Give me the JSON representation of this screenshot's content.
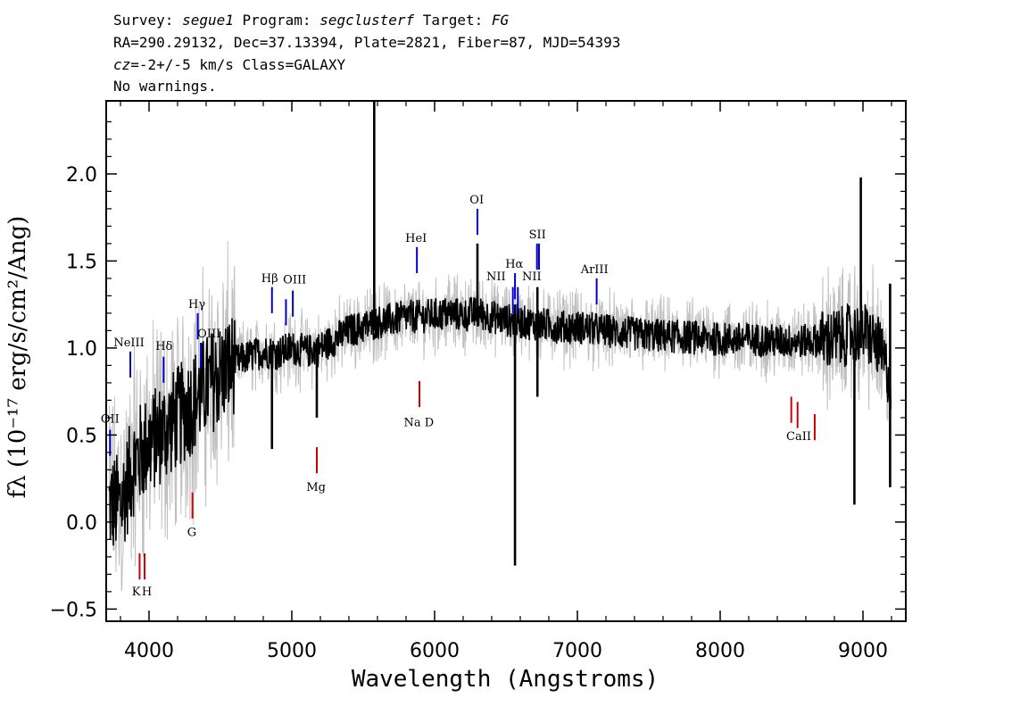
{
  "header": {
    "line1": {
      "survey_label": "Survey: ",
      "survey": "segue1",
      "program_label": " Program: ",
      "program": "segclusterf",
      "target_label": " Target: ",
      "target": "FG"
    },
    "line2": "RA=290.29132, Dec=37.13394, Plate=2821, Fiber=87, MJD=54393",
    "line3": {
      "cz": "cz",
      "rest": "=-2+/-5 km/s Class=GALAXY"
    },
    "line4": "No warnings."
  },
  "colors": {
    "spectrum": "#000000",
    "noise": "#c0c0c0",
    "emission": "#0000cc",
    "absorption": "#cc0000",
    "frame": "#000000"
  },
  "chart_data": {
    "type": "line",
    "xlabel": "Wavelength (Angstroms)",
    "ylabel": "fλ (10⁻¹⁷ erg/s/cm²/Ang)",
    "xlim": [
      3700,
      9300
    ],
    "ylim": [
      -0.57,
      2.42
    ],
    "xticks": [
      4000,
      5000,
      6000,
      7000,
      8000,
      9000
    ],
    "xtick_labels": [
      "4000",
      "5000",
      "6000",
      "7000",
      "8000",
      "9000"
    ],
    "yticks": [
      -0.5,
      0.0,
      0.5,
      1.0,
      1.5,
      2.0
    ],
    "ytick_labels": [
      "-0.5",
      "0.0",
      "0.5",
      "1.0",
      "1.5",
      "2.0"
    ],
    "series": [
      {
        "role": "spectrum",
        "x": [
          3800,
          3900,
          4000,
          4100,
          4200,
          4300,
          4400,
          4500,
          4600,
          4700,
          4800,
          4900,
          5000,
          5100,
          5200,
          5300,
          5400,
          5500,
          5600,
          5700,
          5800,
          5900,
          6000,
          6100,
          6200,
          6300,
          6400,
          6500,
          6600,
          6700,
          6800,
          6900,
          7000,
          7200,
          7400,
          7600,
          7800,
          8000,
          8200,
          8400,
          8600,
          8800,
          9000,
          9100,
          9200
        ],
        "y": [
          0.1,
          0.35,
          0.45,
          0.52,
          0.6,
          0.68,
          0.78,
          0.85,
          0.92,
          0.95,
          0.98,
          0.97,
          1.0,
          0.98,
          1.0,
          1.05,
          1.1,
          1.12,
          1.15,
          1.16,
          1.18,
          1.18,
          1.19,
          1.2,
          1.19,
          1.2,
          1.18,
          1.16,
          1.15,
          1.14,
          1.13,
          1.12,
          1.12,
          1.1,
          1.08,
          1.07,
          1.06,
          1.05,
          1.05,
          1.04,
          1.04,
          1.05,
          1.1,
          1.02,
          0.8
        ]
      }
    ],
    "spikes": [
      {
        "x": 5577,
        "y_top": 2.42,
        "y_bottom": 1.1
      },
      {
        "x": 6300,
        "y_top": 1.6,
        "y_bottom": 1.15
      },
      {
        "x": 6563,
        "y_top": 1.25,
        "y_bottom": -0.25
      },
      {
        "x": 6720,
        "y_top": 1.35,
        "y_bottom": 0.72
      },
      {
        "x": 4861,
        "y_top": 1.0,
        "y_bottom": 0.42
      },
      {
        "x": 5175,
        "y_top": 1.05,
        "y_bottom": 0.6
      },
      {
        "x": 8940,
        "y_top": 1.0,
        "y_bottom": 0.1
      },
      {
        "x": 8985,
        "y_top": 1.98,
        "y_bottom": 1.0
      },
      {
        "x": 9190,
        "y_top": 1.37,
        "y_bottom": 0.2
      }
    ],
    "emission_lines": [
      {
        "label": "OII",
        "x": 3727,
        "y0": 0.38,
        "y1": 0.53
      },
      {
        "label": "NeIII",
        "x": 3869,
        "y0": 0.83,
        "y1": 0.98
      },
      {
        "label": "Hδ",
        "x": 4102,
        "y0": 0.8,
        "y1": 0.95
      },
      {
        "label": "Hγ",
        "x": 4341,
        "y0": 1.05,
        "y1": 1.2
      },
      {
        "label": "OIII",
        "x": 4363,
        "y0": 0.88,
        "y1": 1.03
      },
      {
        "label": "Hβ",
        "x": 4861,
        "y0": 1.2,
        "y1": 1.35
      },
      {
        "label": "OIII",
        "x": 4959,
        "y0": 1.13,
        "y1": 1.28
      },
      {
        "label": "OIII",
        "x": 5007,
        "y0": 1.18,
        "y1": 1.33
      },
      {
        "label": "HeI",
        "x": 5876,
        "y0": 1.43,
        "y1": 1.58
      },
      {
        "label": "OI",
        "x": 6300,
        "y0": 1.65,
        "y1": 1.8
      },
      {
        "label": "NII",
        "x": 6548,
        "y0": 1.2,
        "y1": 1.35
      },
      {
        "label": "Hα",
        "x": 6563,
        "y0": 1.28,
        "y1": 1.43
      },
      {
        "label": "NII",
        "x": 6583,
        "y0": 1.2,
        "y1": 1.35
      },
      {
        "label": "SII",
        "x": 6717,
        "y0": 1.45,
        "y1": 1.6
      },
      {
        "label": "SII",
        "x": 6731,
        "y0": 1.45,
        "y1": 1.6
      },
      {
        "label": "ArIII",
        "x": 7135,
        "y0": 1.25,
        "y1": 1.4
      }
    ],
    "absorption_lines": [
      {
        "label": "K",
        "x": 3934,
        "y0": -0.33,
        "y1": -0.18
      },
      {
        "label": "H",
        "x": 3969,
        "y0": -0.33,
        "y1": -0.18
      },
      {
        "label": "G",
        "x": 4304,
        "y0": 0.02,
        "y1": 0.17
      },
      {
        "label": "Mg",
        "x": 5175,
        "y0": 0.28,
        "y1": 0.43
      },
      {
        "label": "Na D",
        "x": 5894,
        "y0": 0.66,
        "y1": 0.81
      },
      {
        "label": "CaII",
        "x": 8498,
        "y0": 0.57,
        "y1": 0.72
      },
      {
        "label": "CaII",
        "x": 8542,
        "y0": 0.54,
        "y1": 0.69
      },
      {
        "label": "CaII",
        "x": 8662,
        "y0": 0.47,
        "y1": 0.62
      }
    ],
    "line_labels": [
      {
        "text": "OII",
        "x": 3727,
        "y": 0.57,
        "kind": "emission"
      },
      {
        "text": "NeIII",
        "x": 3860,
        "y": 1.01,
        "kind": "emission"
      },
      {
        "text": "Hδ",
        "x": 4105,
        "y": 0.99,
        "kind": "emission"
      },
      {
        "text": "Hγ",
        "x": 4335,
        "y": 1.23,
        "kind": "emission"
      },
      {
        "text": "OIII",
        "x": 4420,
        "y": 1.06,
        "kind": "emission"
      },
      {
        "text": "Hβ",
        "x": 4845,
        "y": 1.38,
        "kind": "emission"
      },
      {
        "text": "OIII",
        "x": 5020,
        "y": 1.37,
        "kind": "emission"
      },
      {
        "text": "HeI",
        "x": 5870,
        "y": 1.61,
        "kind": "emission"
      },
      {
        "text": "OI",
        "x": 6295,
        "y": 1.83,
        "kind": "emission"
      },
      {
        "text": "NII",
        "x": 6430,
        "y": 1.39,
        "kind": "emission"
      },
      {
        "text": "Hα",
        "x": 6558,
        "y": 1.46,
        "kind": "emission"
      },
      {
        "text": "SII",
        "x": 6720,
        "y": 1.63,
        "kind": "emission"
      },
      {
        "text": "NII",
        "x": 6680,
        "y": 1.39,
        "kind": "emission"
      },
      {
        "text": "ArIII",
        "x": 7120,
        "y": 1.43,
        "kind": "emission"
      },
      {
        "text": "K",
        "x": 3910,
        "y": -0.42,
        "kind": "absorption"
      },
      {
        "text": "H",
        "x": 3985,
        "y": -0.42,
        "kind": "absorption"
      },
      {
        "text": "G",
        "x": 4300,
        "y": -0.08,
        "kind": "absorption"
      },
      {
        "text": "Mg",
        "x": 5170,
        "y": 0.18,
        "kind": "absorption"
      },
      {
        "text": "Na D",
        "x": 5890,
        "y": 0.55,
        "kind": "absorption"
      },
      {
        "text": "CaII",
        "x": 8550,
        "y": 0.47,
        "kind": "absorption"
      }
    ]
  }
}
